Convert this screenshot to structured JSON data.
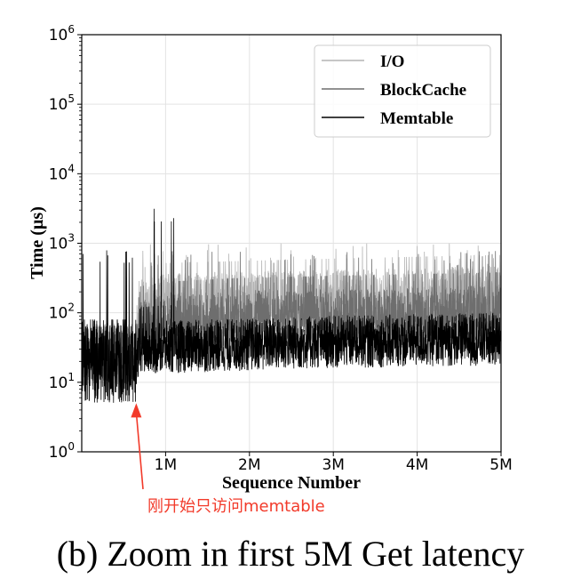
{
  "chart_data": {
    "type": "line",
    "title": "",
    "xlabel": "Sequence Number",
    "ylabel": "Time (µs)",
    "xlim": [
      0,
      5000000
    ],
    "ylim": [
      1,
      1000000
    ],
    "yscale": "log",
    "grid": true,
    "legend_position": "top-right",
    "x_ticks": [
      {
        "value": 1000000,
        "label": "1M"
      },
      {
        "value": 2000000,
        "label": "2M"
      },
      {
        "value": 3000000,
        "label": "3M"
      },
      {
        "value": 4000000,
        "label": "4M"
      },
      {
        "value": 5000000,
        "label": "5M"
      }
    ],
    "y_ticks": [
      {
        "value": 1,
        "base": "10",
        "exp": "0"
      },
      {
        "value": 10,
        "base": "10",
        "exp": "1"
      },
      {
        "value": 100,
        "base": "10",
        "exp": "2"
      },
      {
        "value": 1000,
        "base": "10",
        "exp": "3"
      },
      {
        "value": 10000,
        "base": "10",
        "exp": "4"
      },
      {
        "value": 100000,
        "base": "10",
        "exp": "5"
      },
      {
        "value": 1000000,
        "base": "10",
        "exp": "6"
      }
    ],
    "series": [
      {
        "name": "I/O",
        "color": "#b3b3b3",
        "x": [
          0,
          650000,
          700000,
          1000000,
          2000000,
          3000000,
          4000000,
          5000000
        ],
        "y_typical": [
          25,
          25,
          110,
          130,
          140,
          150,
          160,
          170
        ],
        "y_peak": [
          null,
          null,
          1000,
          1000,
          1000,
          1000,
          1000,
          1000
        ]
      },
      {
        "name": "BlockCache",
        "color": "#6e6e6e",
        "x": [
          0,
          650000,
          700000,
          1000000,
          2000000,
          3000000,
          4000000,
          5000000
        ],
        "y_typical": [
          25,
          25,
          60,
          70,
          80,
          85,
          90,
          95
        ],
        "y_peak": [
          null,
          null,
          800,
          800,
          800,
          800,
          800,
          800
        ]
      },
      {
        "name": "Memtable",
        "color": "#000000",
        "x": [
          0,
          650000,
          700000,
          1000000,
          2000000,
          3000000,
          4000000,
          5000000
        ],
        "y_typical": [
          20,
          20,
          30,
          32,
          35,
          38,
          40,
          42
        ],
        "y_peak": [
          800,
          850,
          3200,
          null,
          null,
          null,
          null,
          null
        ]
      }
    ],
    "annotations": [
      {
        "text": "刚开始只访问memtable",
        "x": 650000,
        "y": 5,
        "color": "#f23a2a"
      }
    ]
  },
  "caption": "(b) Zoom in first 5M Get latency"
}
